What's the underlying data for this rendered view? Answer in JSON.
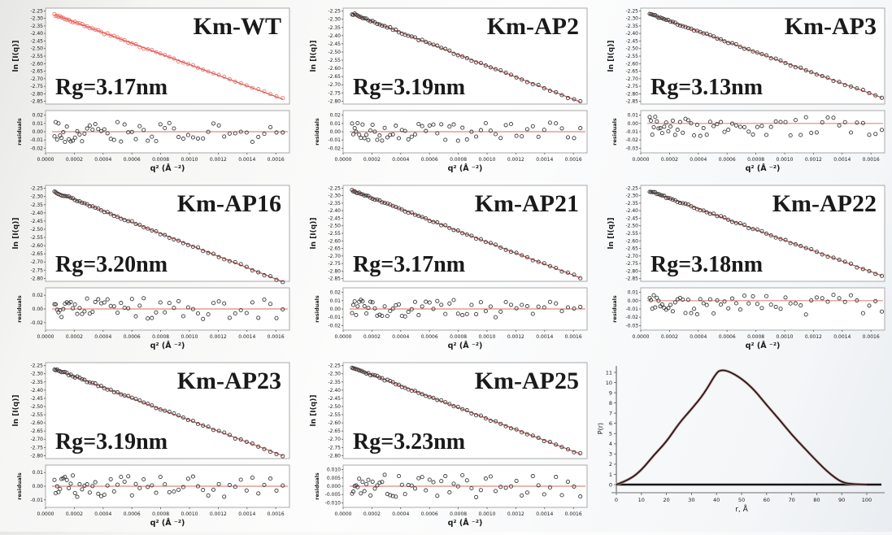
{
  "figure_title": "Guinier analysis panels with residuals and P(r) distance distribution",
  "colors": {
    "panel_border": "#a9a9a9",
    "axis_text": "#1a1a1a",
    "residual_point": "#3a3a3a",
    "pr_curve_dark": "#241212",
    "pr_curve_maroon": "#6b2b2b",
    "pr_curve_halo": "#b3b3b3",
    "pr_baseline": "#151515"
  },
  "chart_data": {
    "shared_guinier": {
      "type": "scatter",
      "xlabel": "q² (Å ⁻²)",
      "ylabel_main": "ln [I(q)]",
      "ylabel_residuals": "residuals",
      "x_ticks": [
        "0.0000",
        "0.0002",
        "0.0004",
        "0.0006",
        "0.0008",
        "0.0010",
        "0.0012",
        "0.0014",
        "0.0016"
      ],
      "x_range": [
        0,
        0.001695
      ],
      "fit_color": "#c9524e",
      "zero_line_color": "#dd8a82",
      "grid": false
    },
    "guinier_panels": [
      {
        "title": "Km-WT",
        "rg_label": "Rg=3.17nm",
        "point_color": "#f2736b",
        "y_ticks": [
          "-2.25",
          "-2.30",
          "-2.35",
          "-2.40",
          "-2.45",
          "-2.50",
          "-2.55",
          "-2.60",
          "-2.65",
          "-2.70",
          "-2.75",
          "-2.80",
          "-2.85"
        ],
        "fit_line": {
          "x": [
            6.2e-05,
            0.001648
          ],
          "y": [
            -2.275,
            -2.835
          ]
        },
        "n_points": 62,
        "noise": 0.007,
        "seed": 3,
        "residuals": {
          "y_ticks": [
            "0.02",
            "0.01",
            "0.00",
            "-0.01",
            "-0.02"
          ],
          "amplitude": 0.013,
          "offset": 0,
          "seed": 103
        }
      },
      {
        "title": "Km-AP2",
        "rg_label": "Rg=3.19nm",
        "point_color": "#3a3a3a",
        "y_ticks": [
          "-2.25",
          "-2.30",
          "-2.35",
          "-2.40",
          "-2.45",
          "-2.50",
          "-2.55",
          "-2.60",
          "-2.65",
          "-2.70",
          "-2.75",
          "-2.80"
        ],
        "fit_line": {
          "x": [
            6.2e-05,
            0.001648
          ],
          "y": [
            -2.265,
            -2.805
          ]
        },
        "n_points": 62,
        "noise": 0.006,
        "seed": 7,
        "residuals": {
          "y_ticks": [
            "0.02",
            "0.01",
            "0.00",
            "-0.01",
            "-0.02"
          ],
          "amplitude": 0.011,
          "offset": 0,
          "seed": 107
        }
      },
      {
        "title": "Km-AP3",
        "rg_label": "Rg=3.13nm",
        "point_color": "#3a3a3a",
        "y_ticks": [
          "-2.25",
          "-2.30",
          "-2.35",
          "-2.40",
          "-2.45",
          "-2.50",
          "-2.55",
          "-2.60",
          "-2.65",
          "-2.70",
          "-2.75",
          "-2.80",
          "-2.85"
        ],
        "fit_line": {
          "x": [
            6.2e-05,
            0.001675
          ],
          "y": [
            -2.27,
            -2.825
          ]
        },
        "n_points": 62,
        "noise": 0.006,
        "seed": 11,
        "residuals": {
          "y_ticks": [
            "0.01",
            "0.00",
            "-0.01",
            "-0.02",
            "-0.03"
          ],
          "amplitude": 0.012,
          "offset": -0.004,
          "seed": 111
        }
      },
      {
        "title": "Km-AP16",
        "rg_label": "Rg=3.20nm",
        "point_color": "#3a3a3a",
        "y_ticks": [
          "-2.25",
          "-2.30",
          "-2.35",
          "-2.40",
          "-2.45",
          "-2.50",
          "-2.55",
          "-2.60",
          "-2.65",
          "-2.70",
          "-2.75",
          "-2.80"
        ],
        "fit_line": {
          "x": [
            6.2e-05,
            0.001648
          ],
          "y": [
            -2.27,
            -2.82
          ]
        },
        "n_points": 62,
        "noise": 0.006,
        "seed": 13,
        "residuals": {
          "y_ticks": [
            "0.02",
            "0.00",
            "-0.02"
          ],
          "amplitude": 0.016,
          "offset": 0,
          "seed": 113
        }
      },
      {
        "title": "Km-AP21",
        "rg_label": "Rg=3.17nm",
        "point_color": "#3a3a3a",
        "y_ticks": [
          "-2.25",
          "-2.30",
          "-2.35",
          "-2.40",
          "-2.45",
          "-2.50",
          "-2.55",
          "-2.60",
          "-2.65",
          "-2.70",
          "-2.75",
          "-2.80",
          "-2.85"
        ],
        "fit_line": {
          "x": [
            6.2e-05,
            0.001648
          ],
          "y": [
            -2.265,
            -2.845
          ]
        },
        "n_points": 62,
        "noise": 0.006,
        "seed": 17,
        "residuals": {
          "y_ticks": [
            "0.02",
            "0.01",
            "0.00",
            "-0.01",
            "-0.02"
          ],
          "amplitude": 0.011,
          "offset": 0,
          "seed": 117
        }
      },
      {
        "title": "Km-AP22",
        "rg_label": "Rg=3.18nm",
        "point_color": "#3a3a3a",
        "y_ticks": [
          "-2.25",
          "-2.30",
          "-2.35",
          "-2.40",
          "-2.45",
          "-2.50",
          "-2.55",
          "-2.60",
          "-2.65",
          "-2.70",
          "-2.75",
          "-2.80",
          "-2.85"
        ],
        "fit_line": {
          "x": [
            6.2e-05,
            0.001675
          ],
          "y": [
            -2.27,
            -2.83
          ]
        },
        "n_points": 62,
        "noise": 0.006,
        "seed": 19,
        "residuals": {
          "y_ticks": [
            "0.01",
            "0.00",
            "-0.01",
            "-0.02",
            "-0.03"
          ],
          "amplitude": 0.012,
          "offset": -0.005,
          "seed": 119
        }
      },
      {
        "title": "Km-AP23",
        "rg_label": "Rg=3.19nm",
        "point_color": "#3a3a3a",
        "y_ticks": [
          "-2.25",
          "-2.30",
          "-2.35",
          "-2.40",
          "-2.45",
          "-2.50",
          "-2.55",
          "-2.60",
          "-2.65",
          "-2.70",
          "-2.75",
          "-2.80"
        ],
        "fit_line": {
          "x": [
            6.2e-05,
            0.001648
          ],
          "y": [
            -2.27,
            -2.8
          ]
        },
        "n_points": 62,
        "noise": 0.006,
        "seed": 23,
        "residuals": {
          "y_ticks": [
            "0.01",
            "0.00",
            "-0.01"
          ],
          "amplitude": 0.008,
          "offset": 0,
          "seed": 123
        }
      },
      {
        "title": "Km-AP25",
        "rg_label": "Rg=3.23nm",
        "point_color": "#3a3a3a",
        "y_ticks": [
          "-2.25",
          "-2.30",
          "-2.35",
          "-2.40",
          "-2.45",
          "-2.50",
          "-2.55",
          "-2.60",
          "-2.65",
          "-2.70",
          "-2.75",
          "-2.80"
        ],
        "fit_line": {
          "x": [
            6.2e-05,
            0.001648
          ],
          "y": [
            -2.26,
            -2.79
          ]
        },
        "n_points": 62,
        "noise": 0.006,
        "seed": 29,
        "residuals": {
          "y_ticks": [
            "0.010",
            "0.005",
            "0.000",
            "-0.005",
            "-0.010"
          ],
          "amplitude": 0.007,
          "offset": 0,
          "seed": 129
        }
      }
    ],
    "pr_distribution": {
      "type": "line",
      "xlabel": "r, Å",
      "ylabel": "P(r)",
      "x_ticks": [
        "0",
        "10",
        "20",
        "30",
        "40",
        "50",
        "60",
        "70",
        "80",
        "90",
        "100"
      ],
      "y_ticks": [
        "0",
        "1",
        "2",
        "3",
        "4",
        "5",
        "6",
        "7",
        "8",
        "9",
        "10",
        "11"
      ],
      "xlim": [
        0,
        100
      ],
      "ylim": [
        0,
        11.6
      ],
      "x": [
        0,
        5,
        10,
        15,
        20,
        25,
        30,
        35,
        40,
        42,
        45,
        50,
        55,
        60,
        65,
        70,
        75,
        80,
        85,
        90,
        95,
        100
      ],
      "y": [
        0,
        0.45,
        1.4,
        2.9,
        4.2,
        6.0,
        7.4,
        8.9,
        11.0,
        11.25,
        11.1,
        10.4,
        9.3,
        7.8,
        6.4,
        4.9,
        3.6,
        2.3,
        1.1,
        0.2,
        0.03,
        0
      ]
    }
  }
}
